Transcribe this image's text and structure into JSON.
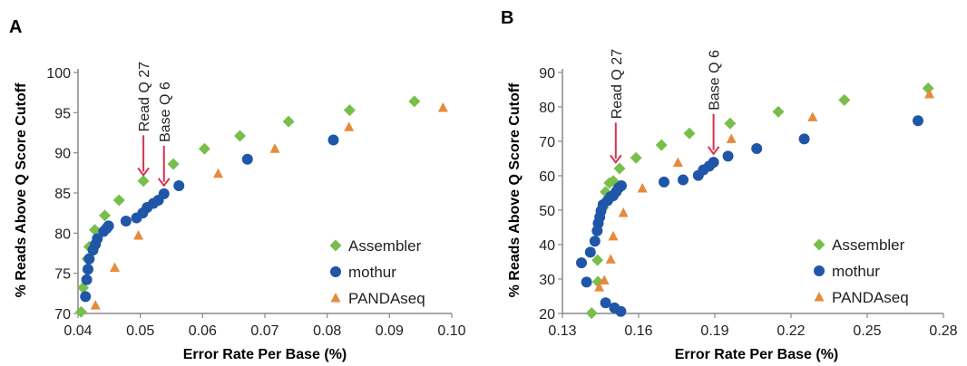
{
  "ylabel": "% Reads Above Q Score Cutoff",
  "xlabel": "Error Rate Per Base (%)",
  "colors": {
    "assembler": "#77bf4b",
    "mothur": "#1f56a8",
    "pandaseq": "#e68a3c",
    "arrow": "#d6334f"
  },
  "chart_data": [
    {
      "panel": "A",
      "type": "scatter",
      "xlabel": "Error Rate Per Base (%)",
      "ylabel": "% Reads Above Q Score Cutoff",
      "xlim": [
        0.04,
        0.1
      ],
      "ylim": [
        70,
        100
      ],
      "xticks": [
        "0.04",
        "0.05",
        "0.06",
        "0.07",
        "0.08",
        "0.09",
        "0.10"
      ],
      "yticks": [
        "70",
        "75",
        "80",
        "85",
        "90",
        "95",
        "100"
      ],
      "legend": "bottom-right",
      "grid": false,
      "annotations": [
        {
          "text": "Read Q 27",
          "x": 0.0505,
          "y": 86.2
        },
        {
          "text": "Base Q 6",
          "x": 0.0538,
          "y": 84.9
        }
      ],
      "series": [
        {
          "name": "Assembler",
          "marker": "diamond",
          "color": "#77bf4b",
          "points": [
            [
              0.0405,
              70.2
            ],
            [
              0.0408,
              73.2
            ],
            [
              0.0415,
              76.8
            ],
            [
              0.0418,
              78.3
            ],
            [
              0.0427,
              80.4
            ],
            [
              0.0443,
              82.2
            ],
            [
              0.0466,
              84.1
            ],
            [
              0.0505,
              86.5
            ],
            [
              0.0553,
              88.6
            ],
            [
              0.0603,
              90.5
            ],
            [
              0.066,
              92.1
            ],
            [
              0.0738,
              93.9
            ],
            [
              0.0836,
              95.3
            ],
            [
              0.094,
              96.4
            ]
          ]
        },
        {
          "name": "mothur",
          "marker": "circle",
          "color": "#1f56a8",
          "points": [
            [
              0.0412,
              72.1
            ],
            [
              0.0414,
              74.2
            ],
            [
              0.0416,
              75.5
            ],
            [
              0.0418,
              76.8
            ],
            [
              0.0424,
              77.9
            ],
            [
              0.0428,
              78.6
            ],
            [
              0.0431,
              79.3
            ],
            [
              0.0441,
              80.2
            ],
            [
              0.0446,
              80.6
            ],
            [
              0.0449,
              80.9
            ],
            [
              0.0477,
              81.5
            ],
            [
              0.0494,
              81.9
            ],
            [
              0.0504,
              82.5
            ],
            [
              0.0511,
              83.2
            ],
            [
              0.0521,
              83.7
            ],
            [
              0.0529,
              84.1
            ],
            [
              0.0538,
              84.9
            ],
            [
              0.0562,
              85.9
            ],
            [
              0.0672,
              89.2
            ],
            [
              0.081,
              91.6
            ]
          ]
        },
        {
          "name": "PANDAseq",
          "marker": "triangle",
          "color": "#e68a3c",
          "points": [
            [
              0.0428,
              71.0
            ],
            [
              0.0459,
              75.7
            ],
            [
              0.0497,
              79.7
            ],
            [
              0.0625,
              87.4
            ],
            [
              0.0716,
              90.5
            ],
            [
              0.0835,
              93.2
            ],
            [
              0.0986,
              95.6
            ]
          ]
        }
      ]
    },
    {
      "panel": "B",
      "type": "scatter",
      "xlabel": "Error Rate Per Base (%)",
      "ylabel": "% Reads Above Q Score Cutoff",
      "xlim": [
        0.13,
        0.28
      ],
      "ylim": [
        20,
        90
      ],
      "xticks": [
        "0.13",
        "0.16",
        "0.19",
        "0.22",
        "0.25",
        "0.28"
      ],
      "yticks": [
        "20",
        "30",
        "40",
        "50",
        "60",
        "70",
        "80",
        "90"
      ],
      "legend": "bottom-right",
      "grid": false,
      "annotations": [
        {
          "text": "Read Q 27",
          "x": 0.151,
          "y": 61.5
        },
        {
          "text": "Base Q 6",
          "x": 0.1895,
          "y": 64.0
        }
      ],
      "series": [
        {
          "name": "Assembler",
          "marker": "diamond",
          "color": "#77bf4b",
          "points": [
            [
              0.1415,
              20.1
            ],
            [
              0.144,
              29.2
            ],
            [
              0.1438,
              35.5
            ],
            [
              0.146,
              50.7
            ],
            [
              0.147,
              55.3
            ],
            [
              0.1485,
              57.9
            ],
            [
              0.15,
              58.5
            ],
            [
              0.1525,
              62.1
            ],
            [
              0.159,
              65.2
            ],
            [
              0.169,
              68.9
            ],
            [
              0.18,
              72.3
            ],
            [
              0.196,
              75.2
            ],
            [
              0.215,
              78.6
            ],
            [
              0.241,
              82.0
            ],
            [
              0.274,
              85.4
            ]
          ]
        },
        {
          "name": "mothur",
          "marker": "circle",
          "color": "#1f56a8",
          "points": [
            [
              0.1375,
              34.7
            ],
            [
              0.1395,
              29.1
            ],
            [
              0.141,
              37.8
            ],
            [
              0.1428,
              41.0
            ],
            [
              0.1437,
              44.0
            ],
            [
              0.1441,
              46.2
            ],
            [
              0.1447,
              48.0
            ],
            [
              0.1452,
              49.8
            ],
            [
              0.146,
              51.6
            ],
            [
              0.1478,
              52.8
            ],
            [
              0.149,
              53.9
            ],
            [
              0.15,
              54.2
            ],
            [
              0.1512,
              55.4
            ],
            [
              0.1522,
              56.5
            ],
            [
              0.1532,
              57.1
            ],
            [
              0.147,
              23.1
            ],
            [
              0.1505,
              21.6
            ],
            [
              0.153,
              20.6
            ],
            [
              0.17,
              58.2
            ],
            [
              0.1775,
              58.8
            ],
            [
              0.1835,
              60.1
            ],
            [
              0.1855,
              61.7
            ],
            [
              0.1878,
              62.8
            ],
            [
              0.1895,
              63.9
            ],
            [
              0.1952,
              65.7
            ],
            [
              0.2065,
              67.9
            ],
            [
              0.2252,
              70.7
            ],
            [
              0.27,
              76.0
            ]
          ]
        },
        {
          "name": "PANDAseq",
          "marker": "triangle",
          "color": "#e68a3c",
          "points": [
            [
              0.1445,
              27.6
            ],
            [
              0.1465,
              29.6
            ],
            [
              0.149,
              35.7
            ],
            [
              0.15,
              42.4
            ],
            [
              0.154,
              49.2
            ],
            [
              0.1615,
              56.3
            ],
            [
              0.1755,
              63.8
            ],
            [
              0.1965,
              70.7
            ],
            [
              0.2285,
              77.0
            ],
            [
              0.2745,
              83.7
            ]
          ]
        }
      ]
    }
  ]
}
